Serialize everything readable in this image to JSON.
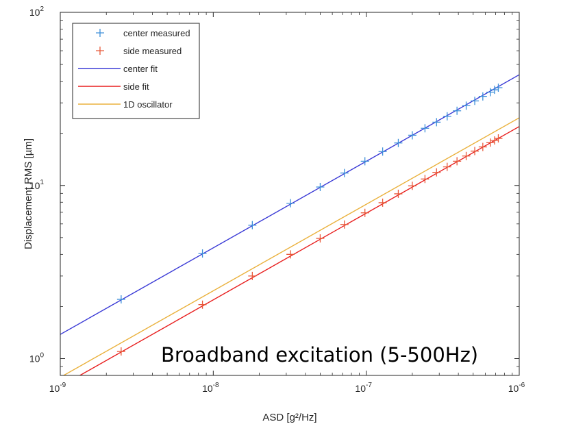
{
  "chart_data": {
    "type": "line",
    "xscale": "log",
    "yscale": "log",
    "xlim": [
      1e-09,
      1e-06
    ],
    "ylim": [
      0.8,
      100
    ],
    "grid": false,
    "legend_position": "top-left",
    "xlabel": "ASD [g²/Hz]",
    "ylabel": "Displacement RMS [µm]",
    "x_ticks": [
      {
        "value": 1e-09,
        "base": "10",
        "exp": "-9"
      },
      {
        "value": 1e-08,
        "base": "10",
        "exp": "-8"
      },
      {
        "value": 1e-07,
        "base": "10",
        "exp": "-7"
      },
      {
        "value": 1e-06,
        "base": "10",
        "exp": "-6"
      }
    ],
    "y_ticks": [
      {
        "value": 1,
        "base": "10",
        "exp": "0"
      },
      {
        "value": 10,
        "base": "10",
        "exp": "1"
      },
      {
        "value": 100,
        "base": "10",
        "exp": "2"
      }
    ],
    "annotation": "Broadband excitation (5-500Hz)",
    "series": [
      {
        "name": "center measured",
        "style": "markers",
        "marker": "+",
        "color": "#3d8fd9",
        "x": [
          2.5e-09,
          8.5e-09,
          1.8e-08,
          3.2e-08,
          5e-08,
          7.2e-08,
          9.8e-08,
          1.28e-07,
          1.62e-07,
          2e-07,
          2.42e-07,
          2.88e-07,
          3.38e-07,
          3.92e-07,
          4.5e-07,
          5.12e-07,
          5.78e-07,
          6.48e-07,
          6.9e-07,
          7.3e-07
        ],
        "y": [
          2.2,
          4.05,
          5.9,
          7.9,
          9.8,
          11.8,
          13.8,
          15.7,
          17.6,
          19.5,
          21.4,
          23.2,
          25.1,
          27.0,
          28.9,
          30.8,
          32.7,
          34.6,
          35.7,
          36.7
        ]
      },
      {
        "name": "side measured",
        "style": "markers",
        "marker": "+",
        "color": "#e8593a",
        "x": [
          2.5e-09,
          8.5e-09,
          1.8e-08,
          3.2e-08,
          5e-08,
          7.2e-08,
          9.8e-08,
          1.28e-07,
          1.62e-07,
          2e-07,
          2.42e-07,
          2.88e-07,
          3.38e-07,
          3.92e-07,
          4.5e-07,
          5.12e-07,
          5.78e-07,
          6.48e-07,
          6.9e-07,
          7.3e-07
        ],
        "y": [
          1.1,
          2.05,
          3.0,
          4.0,
          4.95,
          5.95,
          6.95,
          7.95,
          8.95,
          9.95,
          10.9,
          11.9,
          12.8,
          13.8,
          14.8,
          15.8,
          16.7,
          17.7,
          18.2,
          18.7
        ]
      },
      {
        "name": "center fit",
        "style": "line",
        "color": "#3b3bd6",
        "x": [
          1e-09,
          1e-06
        ],
        "y": [
          1.38,
          43.6
        ]
      },
      {
        "name": "side fit",
        "style": "line",
        "color": "#e81e1e",
        "x": [
          1e-09,
          1e-06
        ],
        "y": [
          0.69,
          21.9
        ]
      },
      {
        "name": "1D oscillator",
        "style": "line",
        "color": "#eab13c",
        "x": [
          1e-09,
          1e-06
        ],
        "y": [
          0.78,
          24.6
        ]
      }
    ]
  }
}
